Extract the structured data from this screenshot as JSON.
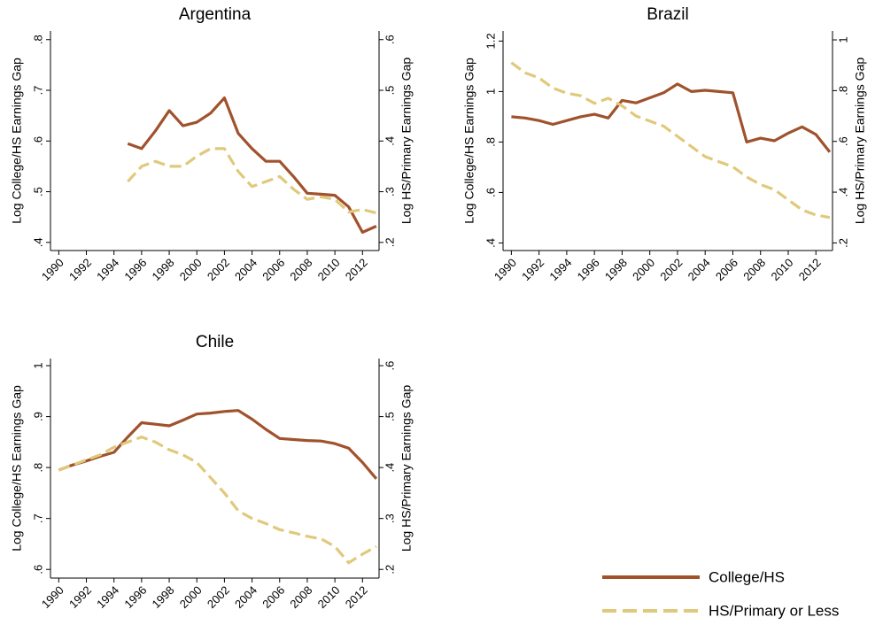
{
  "chart_data": [
    {
      "type": "line",
      "title": "Argentina",
      "y_label": "Log College/HS Earnings Gap",
      "y2_label": "Log HS/Primary Earnings Gap",
      "x": [
        1990,
        1991,
        1992,
        1993,
        1994,
        1995,
        1996,
        1997,
        1998,
        1999,
        2000,
        2001,
        2002,
        2003,
        2004,
        2005,
        2006,
        2007,
        2008,
        2009,
        2010,
        2011,
        2012,
        2013
      ],
      "xlim": [
        1989.4,
        2013.2
      ],
      "xticks": [
        1990,
        1992,
        1994,
        1996,
        1998,
        2000,
        2002,
        2004,
        2006,
        2008,
        2010,
        2012
      ],
      "ylim": [
        0.384,
        0.817
      ],
      "yticks": [
        {
          "value": 0.4,
          "label": ".4"
        },
        {
          "value": 0.5,
          "label": ".5"
        },
        {
          "value": 0.6,
          "label": ".6"
        },
        {
          "value": 0.7,
          "label": ".7"
        },
        {
          "value": 0.8,
          "label": ".8"
        }
      ],
      "y2lim": [
        0.184,
        0.617
      ],
      "y2ticks": [
        {
          "value": 0.2,
          "label": ".2"
        },
        {
          "value": 0.3,
          "label": ".3"
        },
        {
          "value": 0.4,
          "label": ".4"
        },
        {
          "value": 0.5,
          "label": ".5"
        },
        {
          "value": 0.6,
          "label": ".6"
        }
      ],
      "series": [
        {
          "color": "#a0522d",
          "dash": false,
          "axis": "y",
          "values": [
            null,
            null,
            null,
            null,
            null,
            0.595,
            0.585,
            0.62,
            0.66,
            0.63,
            0.637,
            0.655,
            0.685,
            0.615,
            0.585,
            0.56,
            0.56,
            0.53,
            0.497,
            0.495,
            0.493,
            0.47,
            0.42,
            0.432
          ]
        },
        {
          "color": "#e0c97a",
          "dash": true,
          "axis": "y2",
          "values": [
            null,
            null,
            null,
            null,
            null,
            0.32,
            0.35,
            0.36,
            0.35,
            0.35,
            0.37,
            0.385,
            0.385,
            0.34,
            0.31,
            0.32,
            0.33,
            0.305,
            0.285,
            0.29,
            0.285,
            0.26,
            0.265,
            0.258
          ]
        }
      ]
    },
    {
      "type": "line",
      "title": "Brazil",
      "y_label": "Log College/HS Earnings Gap",
      "y2_label": "Log HS/Primary Earnings Gap",
      "x": [
        1990,
        1991,
        1992,
        1993,
        1994,
        1995,
        1996,
        1997,
        1998,
        1999,
        2000,
        2001,
        2002,
        2003,
        2004,
        2005,
        2006,
        2007,
        2008,
        2009,
        2010,
        2011,
        2012,
        2013
      ],
      "xlim": [
        1989.4,
        2013.2
      ],
      "xticks": [
        1990,
        1992,
        1994,
        1996,
        1998,
        2000,
        2002,
        2004,
        2006,
        2008,
        2010,
        2012
      ],
      "ylim": [
        0.37,
        1.24
      ],
      "yticks": [
        {
          "value": 0.4,
          "label": ".4"
        },
        {
          "value": 0.6,
          "label": ".6"
        },
        {
          "value": 0.8,
          "label": ".8"
        },
        1,
        1.2
      ],
      "y2lim": [
        0.17,
        1.035
      ],
      "y2ticks": [
        {
          "value": 0.2,
          "label": ".2"
        },
        {
          "value": 0.4,
          "label": ".4"
        },
        {
          "value": 0.6,
          "label": ".6"
        },
        {
          "value": 0.8,
          "label": ".8"
        },
        1
      ],
      "series": [
        {
          "color": "#a0522d",
          "dash": false,
          "axis": "y",
          "values": [
            0.9,
            0.895,
            0.885,
            0.87,
            0.885,
            0.9,
            0.91,
            0.895,
            0.965,
            0.955,
            0.975,
            0.995,
            1.03,
            1.0,
            1.005,
            1.0,
            0.995,
            0.8,
            0.815,
            0.805,
            0.835,
            0.86,
            0.83,
            0.76
          ]
        },
        {
          "color": "#e0c97a",
          "dash": true,
          "axis": "y2",
          "values": [
            0.91,
            0.87,
            0.85,
            0.81,
            0.79,
            0.78,
            0.75,
            0.77,
            0.74,
            0.7,
            0.68,
            0.66,
            0.62,
            0.58,
            0.54,
            0.52,
            0.5,
            0.46,
            0.43,
            0.41,
            0.37,
            0.33,
            0.31,
            0.3
          ]
        }
      ]
    },
    {
      "type": "line",
      "title": "Chile",
      "y_label": "Log College/HS Earnings Gap",
      "y2_label": "Log HS/Primary Earnings Gap",
      "x": [
        1990,
        1991,
        1992,
        1993,
        1994,
        1995,
        1996,
        1997,
        1998,
        1999,
        2000,
        2001,
        2002,
        2003,
        2004,
        2005,
        2006,
        2007,
        2008,
        2009,
        2010,
        2011,
        2012,
        2013
      ],
      "xlim": [
        1989.4,
        2013.2
      ],
      "xticks": [
        1990,
        1992,
        1994,
        1996,
        1998,
        2000,
        2002,
        2004,
        2006,
        2008,
        2010,
        2012
      ],
      "ylim": [
        0.583,
        1.014
      ],
      "yticks": [
        {
          "value": 0.6,
          "label": ".6"
        },
        {
          "value": 0.7,
          "label": ".7"
        },
        {
          "value": 0.8,
          "label": ".8"
        },
        {
          "value": 0.9,
          "label": ".9"
        },
        1
      ],
      "y2lim": [
        0.183,
        0.614
      ],
      "y2ticks": [
        {
          "value": 0.2,
          "label": ".2"
        },
        {
          "value": 0.3,
          "label": ".3"
        },
        {
          "value": 0.4,
          "label": ".4"
        },
        {
          "value": 0.5,
          "label": ".5"
        },
        {
          "value": 0.6,
          "label": ".6"
        }
      ],
      "series": [
        {
          "color": "#a0522d",
          "dash": false,
          "axis": "y",
          "values": [
            0.795,
            0.805,
            0.813,
            0.822,
            0.83,
            0.86,
            0.888,
            0.885,
            0.882,
            0.893,
            0.905,
            0.907,
            0.91,
            0.912,
            0.895,
            0.875,
            0.857,
            0.855,
            0.853,
            0.852,
            0.847,
            0.838,
            0.81,
            0.778
          ]
        },
        {
          "color": "#e0c97a",
          "dash": true,
          "axis": "y2",
          "values": [
            0.395,
            0.405,
            0.415,
            0.425,
            0.44,
            0.45,
            0.46,
            0.45,
            0.435,
            0.425,
            0.41,
            0.38,
            0.35,
            0.315,
            0.3,
            0.29,
            0.278,
            0.272,
            0.265,
            0.26,
            0.245,
            0.213,
            0.23,
            0.245
          ]
        }
      ]
    }
  ],
  "legend": {
    "position": "bottom-right",
    "entries": [
      {
        "name": "College/HS",
        "color": "#a0522d",
        "dash": false
      },
      {
        "name": "HS/Primary or Less",
        "color": "#e0c97a",
        "dash": true
      }
    ]
  }
}
